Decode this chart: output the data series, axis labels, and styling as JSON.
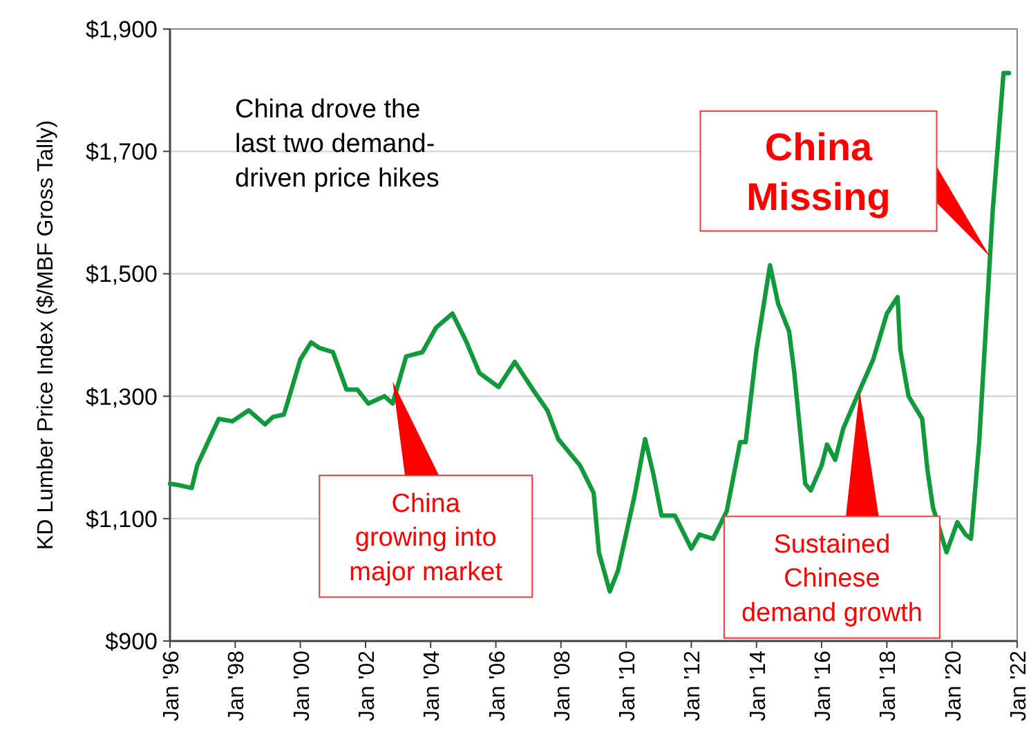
{
  "chart_data": {
    "type": "line",
    "ylabel": "KD Lumber Price Index ($/MBF Gross Tally)",
    "x": [
      "1996-01",
      "1996-04",
      "1996-09",
      "1996-11",
      "1997-03",
      "1997-07",
      "1997-12",
      "1998-06",
      "1998-12",
      "1999-03",
      "1999-07",
      "1999-09",
      "2000-01",
      "2000-05",
      "2000-08",
      "2001-01",
      "2001-06",
      "2001-10",
      "2002-02",
      "2002-08",
      "2002-11",
      "2003-04",
      "2003-10",
      "2004-03",
      "2004-09",
      "2005-02",
      "2005-07",
      "2006-02",
      "2006-08",
      "2007-03",
      "2007-08",
      "2007-12",
      "2008-08",
      "2009-01",
      "2009-03",
      "2009-07",
      "2009-10",
      "2010-04",
      "2010-08",
      "2010-11",
      "2011-02",
      "2011-07",
      "2012-01",
      "2012-04",
      "2012-09",
      "2013-02",
      "2013-07",
      "2013-09",
      "2014-01",
      "2014-06",
      "2014-09",
      "2015-01",
      "2015-03",
      "2015-07",
      "2015-09",
      "2016-01",
      "2016-03",
      "2016-06",
      "2016-09",
      "2017-03",
      "2017-08",
      "2018-01",
      "2018-05",
      "2018-06",
      "2018-09",
      "2019-02",
      "2019-04",
      "2019-06",
      "2019-11",
      "2020-03",
      "2020-06",
      "2020-08",
      "2020-11",
      "2021-04",
      "2021-08",
      "2021-10"
    ],
    "series": [
      {
        "color": "#109a3c",
        "values": [
          1157,
          1155,
          1150,
          1187,
          1225,
          1263,
          1259,
          1277,
          1254,
          1266,
          1270,
          1300,
          1360,
          1388,
          1379,
          1372,
          1311,
          1311,
          1288,
          1300,
          1288,
          1365,
          1372,
          1412,
          1435,
          1390,
          1338,
          1315,
          1356,
          1309,
          1277,
          1230,
          1187,
          1142,
          1045,
          981,
          1015,
          1135,
          1230,
          1173,
          1105,
          1105,
          1051,
          1074,
          1067,
          1112,
          1225,
          1225,
          1376,
          1514,
          1451,
          1406,
          1338,
          1157,
          1146,
          1187,
          1221,
          1196,
          1248,
          1309,
          1360,
          1435,
          1462,
          1376,
          1300,
          1263,
          1180,
          1119,
          1045,
          1094,
          1074,
          1067,
          1225,
          1602,
          1828,
          1828
        ]
      }
    ],
    "xlim": [
      "1996-01",
      "2022-01"
    ],
    "xticks": [
      {
        "value": "1996-01",
        "label": "Jan '96"
      },
      {
        "value": "1998-01",
        "label": "Jan '98"
      },
      {
        "value": "2000-01",
        "label": "Jan '00"
      },
      {
        "value": "2002-01",
        "label": "Jan '02"
      },
      {
        "value": "2004-01",
        "label": "Jan '04"
      },
      {
        "value": "2006-01",
        "label": "Jan '06"
      },
      {
        "value": "2008-01",
        "label": "Jan '08"
      },
      {
        "value": "2010-01",
        "label": "Jan '10"
      },
      {
        "value": "2012-01",
        "label": "Jan '12"
      },
      {
        "value": "2014-01",
        "label": "Jan '14"
      },
      {
        "value": "2016-01",
        "label": "Jan '16"
      },
      {
        "value": "2018-01",
        "label": "Jan '18"
      },
      {
        "value": "2020-01",
        "label": "Jan '20"
      },
      {
        "value": "2022-01",
        "label": "Jan '22"
      }
    ],
    "ylim": [
      900,
      1900
    ],
    "yticks": [
      {
        "value": 900,
        "label": "$900"
      },
      {
        "value": 1100,
        "label": "$1,100"
      },
      {
        "value": 1300,
        "label": "$1,300"
      },
      {
        "value": 1500,
        "label": "$1,500"
      },
      {
        "value": 1700,
        "label": "$1,700"
      },
      {
        "value": 1900,
        "label": "$1,900"
      }
    ],
    "grid": "y",
    "marker": "none",
    "line_style": "solid",
    "annotations": [
      "China drove the last two demand-driven price hikes",
      {
        "text": "China growing into major market",
        "x": "2002-11",
        "y": 1324
      },
      {
        "text": "Sustained Chinese demand growth",
        "x": "2017-03",
        "y": 1309
      },
      {
        "text": "China Missing",
        "x": "2021-03",
        "y": 1528
      }
    ]
  }
}
